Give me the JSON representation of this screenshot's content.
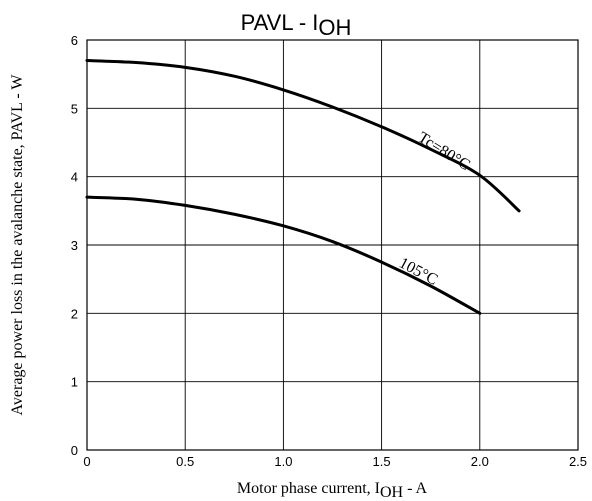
{
  "chart_data": {
    "type": "line",
    "title_main": "PAVL - I",
    "title_sub": "OH",
    "xlabel_main": "Motor phase current, I",
    "xlabel_sub": "OH",
    "xlabel_suffix": " - A",
    "ylabel": "Average power loss in the avalanche state,  PAVL - W",
    "xlim": [
      0,
      2.5
    ],
    "ylim": [
      0,
      6
    ],
    "grid": true,
    "x_ticks": [
      "0",
      "0.5",
      "1.0",
      "1.5",
      "2.0",
      "2.5"
    ],
    "y_ticks": [
      "0",
      "1",
      "2",
      "3",
      "4",
      "5",
      "6"
    ],
    "series": [
      {
        "label": "Tc=80°C",
        "x": [
          0,
          0.25,
          0.5,
          0.75,
          1.0,
          1.25,
          1.5,
          1.75,
          2.0,
          2.2
        ],
        "y": [
          5.7,
          5.67,
          5.6,
          5.47,
          5.27,
          5.02,
          4.73,
          4.4,
          4.02,
          3.5
        ]
      },
      {
        "label": "105°C",
        "x": [
          0,
          0.25,
          0.5,
          0.75,
          1.0,
          1.25,
          1.5,
          1.75,
          2.0
        ],
        "y": [
          3.7,
          3.67,
          3.58,
          3.45,
          3.28,
          3.05,
          2.75,
          2.4,
          2.0
        ]
      }
    ]
  }
}
